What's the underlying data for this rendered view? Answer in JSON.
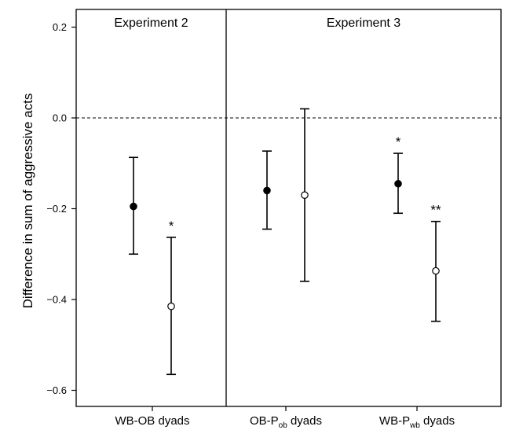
{
  "chart_data": {
    "type": "scatter",
    "ylabel": "Difference in sum of aggressive acts",
    "ylim": [
      -0.65,
      0.24
    ],
    "yticks": [
      "0.2",
      "0.0",
      "-0.2",
      "-0.4",
      "-0.6"
    ],
    "reference_line": 0.0,
    "panels": [
      {
        "title": "Experiment 2"
      },
      {
        "title": "Experiment 3"
      }
    ],
    "categories": [
      {
        "base": "WB-OB dyads",
        "sub": "",
        "tail": ""
      },
      {
        "base": "OB-P",
        "sub": "ob",
        "tail": " dyads"
      },
      {
        "base": "WB-P",
        "sub": "wb",
        "tail": " dyads"
      }
    ],
    "points": [
      {
        "category": 0,
        "marker": "filled",
        "mean": -0.195,
        "lower": -0.3,
        "upper": -0.087,
        "sig": ""
      },
      {
        "category": 0,
        "marker": "open",
        "mean": -0.415,
        "lower": -0.565,
        "upper": -0.263,
        "sig": "*"
      },
      {
        "category": 1,
        "marker": "filled",
        "mean": -0.16,
        "lower": -0.245,
        "upper": -0.073,
        "sig": ""
      },
      {
        "category": 1,
        "marker": "open",
        "mean": -0.17,
        "lower": -0.36,
        "upper": 0.02,
        "sig": ""
      },
      {
        "category": 2,
        "marker": "filled",
        "mean": -0.145,
        "lower": -0.21,
        "upper": -0.078,
        "sig": "*"
      },
      {
        "category": 2,
        "marker": "open",
        "mean": -0.337,
        "lower": -0.448,
        "upper": -0.228,
        "sig": "**"
      }
    ]
  }
}
